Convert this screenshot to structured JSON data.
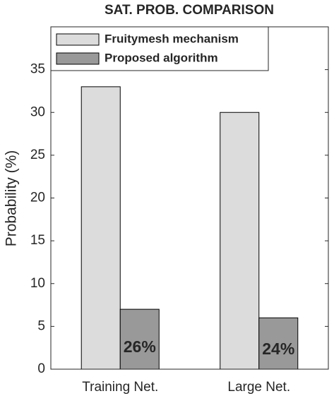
{
  "chart_data": {
    "type": "bar",
    "title": "SAT. PROB. COMPARISON",
    "y_label": "Probability (%)",
    "categories": [
      "Training Net.",
      "Large Net."
    ],
    "series": [
      {
        "name": "Fruitymesh mechanism",
        "color": "#dcdcdc",
        "values": [
          33,
          30
        ]
      },
      {
        "name": "Proposed algorithm",
        "color": "#999999",
        "values": [
          7,
          6
        ]
      }
    ],
    "annotations": [
      "26%",
      "24%"
    ],
    "ylim": [
      0,
      40
    ],
    "yticks": [
      0,
      5,
      10,
      15,
      20,
      25,
      30,
      35
    ],
    "legend": "upper-left"
  }
}
